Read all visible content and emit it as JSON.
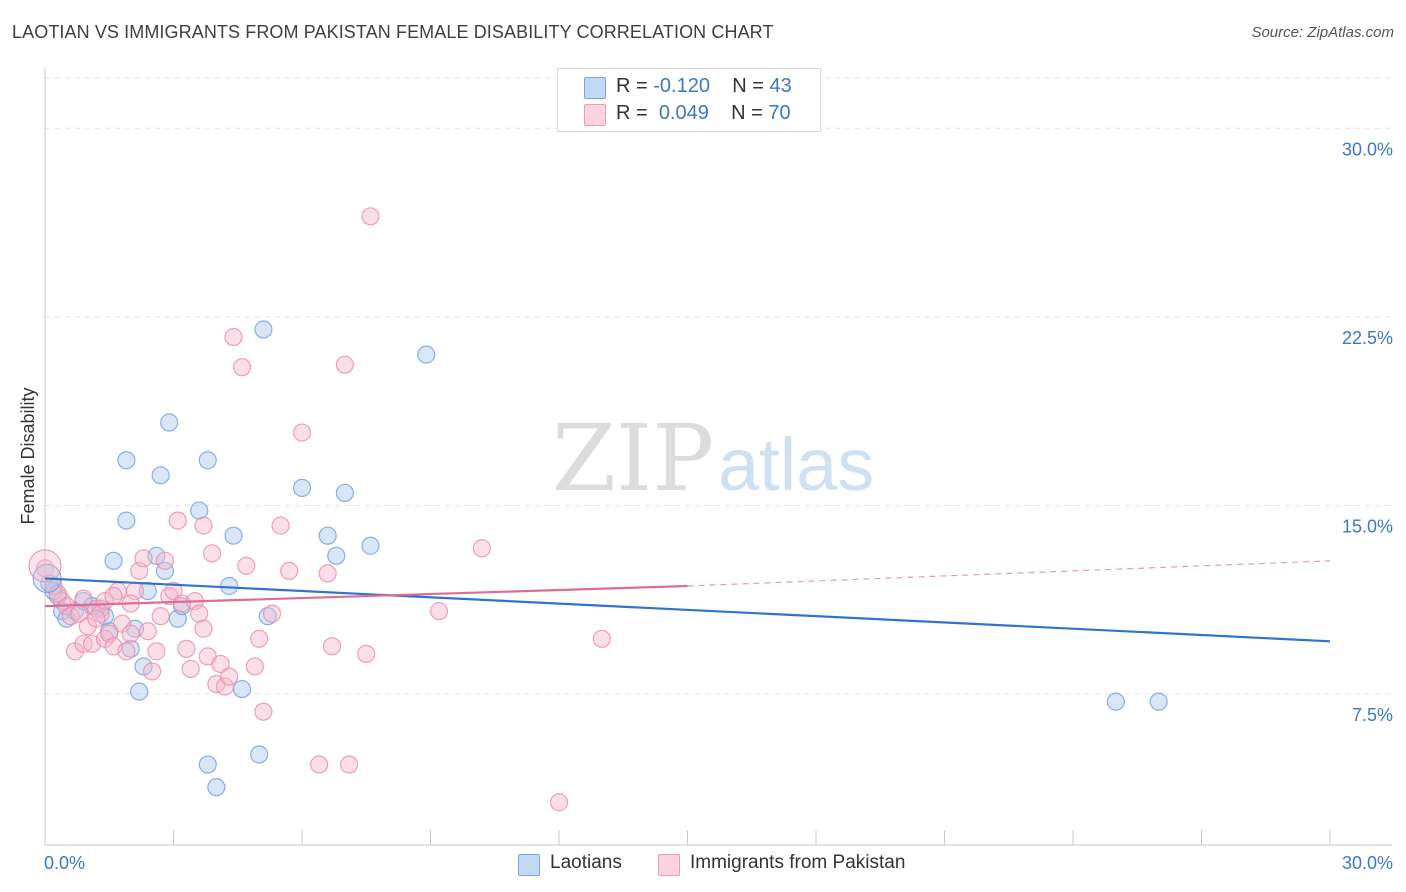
{
  "header": {
    "title": "LAOTIAN VS IMMIGRANTS FROM PAKISTAN FEMALE DISABILITY CORRELATION CHART",
    "source": "Source: ZipAtlas.com"
  },
  "watermark": {
    "zip": "ZIP",
    "atlas": "atlas"
  },
  "legend_top": {
    "rows": [
      {
        "r_label": "R = ",
        "r_value": "-0.120",
        "n_label": "N = ",
        "n_value": "43",
        "color": "#a9c8ee"
      },
      {
        "r_label": "R = ",
        "r_value": "0.049",
        "n_label": "N = ",
        "n_value": "70",
        "color": "#f6b9cc"
      }
    ]
  },
  "legend_bottom": {
    "items": [
      {
        "label": "Laotians",
        "color": "#a9c8ee"
      },
      {
        "label": "Immigrants from Pakistan",
        "color": "#f6b9cc"
      }
    ]
  },
  "chart_data": {
    "type": "scatter",
    "title": "LAOTIAN VS IMMIGRANTS FROM PAKISTAN FEMALE DISABILITY CORRELATION CHART",
    "xlabel": "",
    "ylabel": "Female Disability",
    "xlim": [
      0,
      30
    ],
    "ylim": [
      1.5,
      32
    ],
    "x_tick_labels": [
      "0.0%",
      "30.0%"
    ],
    "y_ticks": [
      7.5,
      15.0,
      22.5,
      30.0
    ],
    "y_tick_labels": [
      "7.5%",
      "15.0%",
      "22.5%",
      "30.0%"
    ],
    "grid": true,
    "legend_position": "bottom",
    "series": [
      {
        "name": "Laotians",
        "color": "#6f9fdc",
        "fill": "#a9c8ee",
        "trend": {
          "x": [
            0,
            30
          ],
          "y": [
            12.1,
            9.6
          ],
          "dashed_from": null
        },
        "points": [
          [
            0.1,
            11.9
          ],
          [
            0.3,
            11.4
          ],
          [
            0.4,
            10.8
          ],
          [
            0.5,
            10.5
          ],
          [
            0.7,
            10.8
          ],
          [
            0.9,
            11.2
          ],
          [
            1.1,
            11.0
          ],
          [
            1.3,
            10.9
          ],
          [
            1.4,
            10.6
          ],
          [
            1.5,
            10.0
          ],
          [
            1.6,
            12.8
          ],
          [
            1.9,
            16.8
          ],
          [
            1.9,
            14.4
          ],
          [
            2.0,
            9.3
          ],
          [
            2.1,
            10.1
          ],
          [
            2.2,
            7.6
          ],
          [
            2.3,
            8.6
          ],
          [
            2.4,
            11.6
          ],
          [
            2.6,
            13.0
          ],
          [
            2.7,
            16.2
          ],
          [
            2.8,
            12.4
          ],
          [
            2.9,
            18.3
          ],
          [
            3.1,
            10.5
          ],
          [
            3.2,
            11.0
          ],
          [
            3.6,
            14.8
          ],
          [
            3.8,
            16.8
          ],
          [
            3.8,
            4.7
          ],
          [
            4.0,
            3.8
          ],
          [
            4.3,
            11.8
          ],
          [
            4.4,
            13.8
          ],
          [
            4.6,
            7.7
          ],
          [
            5.0,
            5.1
          ],
          [
            5.1,
            22.0
          ],
          [
            5.2,
            10.6
          ],
          [
            6.0,
            15.7
          ],
          [
            6.6,
            13.8
          ],
          [
            6.8,
            13.0
          ],
          [
            7.0,
            15.5
          ],
          [
            7.6,
            13.4
          ],
          [
            8.9,
            21.0
          ],
          [
            25.0,
            7.2
          ],
          [
            26.0,
            7.2
          ],
          [
            0.2,
            11.6
          ]
        ]
      },
      {
        "name": "Immigrants from Pakistan",
        "color": "#ea8aab",
        "fill": "#f6b9cc",
        "trend": {
          "x": [
            0,
            15,
            30
          ],
          "y": [
            11.0,
            11.8,
            12.8
          ],
          "dashed_from": 15
        },
        "points": [
          [
            0.0,
            12.5
          ],
          [
            0.2,
            11.8
          ],
          [
            0.4,
            11.2
          ],
          [
            0.5,
            11.0
          ],
          [
            0.6,
            10.6
          ],
          [
            0.7,
            9.2
          ],
          [
            0.8,
            10.7
          ],
          [
            0.9,
            9.5
          ],
          [
            1.0,
            10.2
          ],
          [
            1.1,
            9.5
          ],
          [
            1.2,
            10.9
          ],
          [
            1.3,
            10.7
          ],
          [
            1.4,
            9.7
          ],
          [
            1.4,
            11.2
          ],
          [
            1.5,
            9.9
          ],
          [
            1.6,
            9.4
          ],
          [
            1.7,
            11.6
          ],
          [
            1.8,
            10.3
          ],
          [
            1.9,
            9.2
          ],
          [
            2.0,
            9.9
          ],
          [
            2.1,
            11.6
          ],
          [
            2.2,
            12.4
          ],
          [
            2.4,
            10.0
          ],
          [
            2.5,
            8.4
          ],
          [
            2.6,
            9.2
          ],
          [
            2.7,
            10.6
          ],
          [
            2.8,
            12.8
          ],
          [
            2.9,
            11.4
          ],
          [
            3.0,
            11.6
          ],
          [
            3.1,
            14.4
          ],
          [
            3.2,
            11.1
          ],
          [
            3.3,
            9.3
          ],
          [
            3.4,
            8.5
          ],
          [
            3.5,
            11.2
          ],
          [
            3.6,
            10.7
          ],
          [
            3.7,
            14.2
          ],
          [
            3.8,
            9.0
          ],
          [
            3.9,
            13.1
          ],
          [
            4.0,
            7.9
          ],
          [
            4.1,
            8.7
          ],
          [
            4.2,
            7.8
          ],
          [
            4.3,
            8.2
          ],
          [
            4.4,
            21.7
          ],
          [
            4.6,
            20.5
          ],
          [
            4.7,
            12.6
          ],
          [
            4.9,
            8.6
          ],
          [
            5.0,
            9.7
          ],
          [
            5.1,
            6.8
          ],
          [
            5.3,
            10.7
          ],
          [
            5.5,
            14.2
          ],
          [
            5.7,
            12.4
          ],
          [
            6.0,
            17.9
          ],
          [
            6.4,
            4.7
          ],
          [
            6.6,
            12.3
          ],
          [
            6.7,
            9.4
          ],
          [
            7.0,
            20.6
          ],
          [
            7.1,
            4.7
          ],
          [
            7.6,
            26.5
          ],
          [
            7.5,
            9.1
          ],
          [
            9.2,
            10.8
          ],
          [
            10.2,
            13.3
          ],
          [
            12.0,
            3.2
          ],
          [
            13.0,
            9.7
          ],
          [
            1.6,
            11.4
          ],
          [
            2.3,
            12.9
          ],
          [
            0.3,
            11.5
          ],
          [
            1.2,
            10.5
          ],
          [
            2.0,
            11.1
          ],
          [
            3.7,
            10.1
          ],
          [
            0.9,
            11.3
          ]
        ]
      }
    ]
  }
}
